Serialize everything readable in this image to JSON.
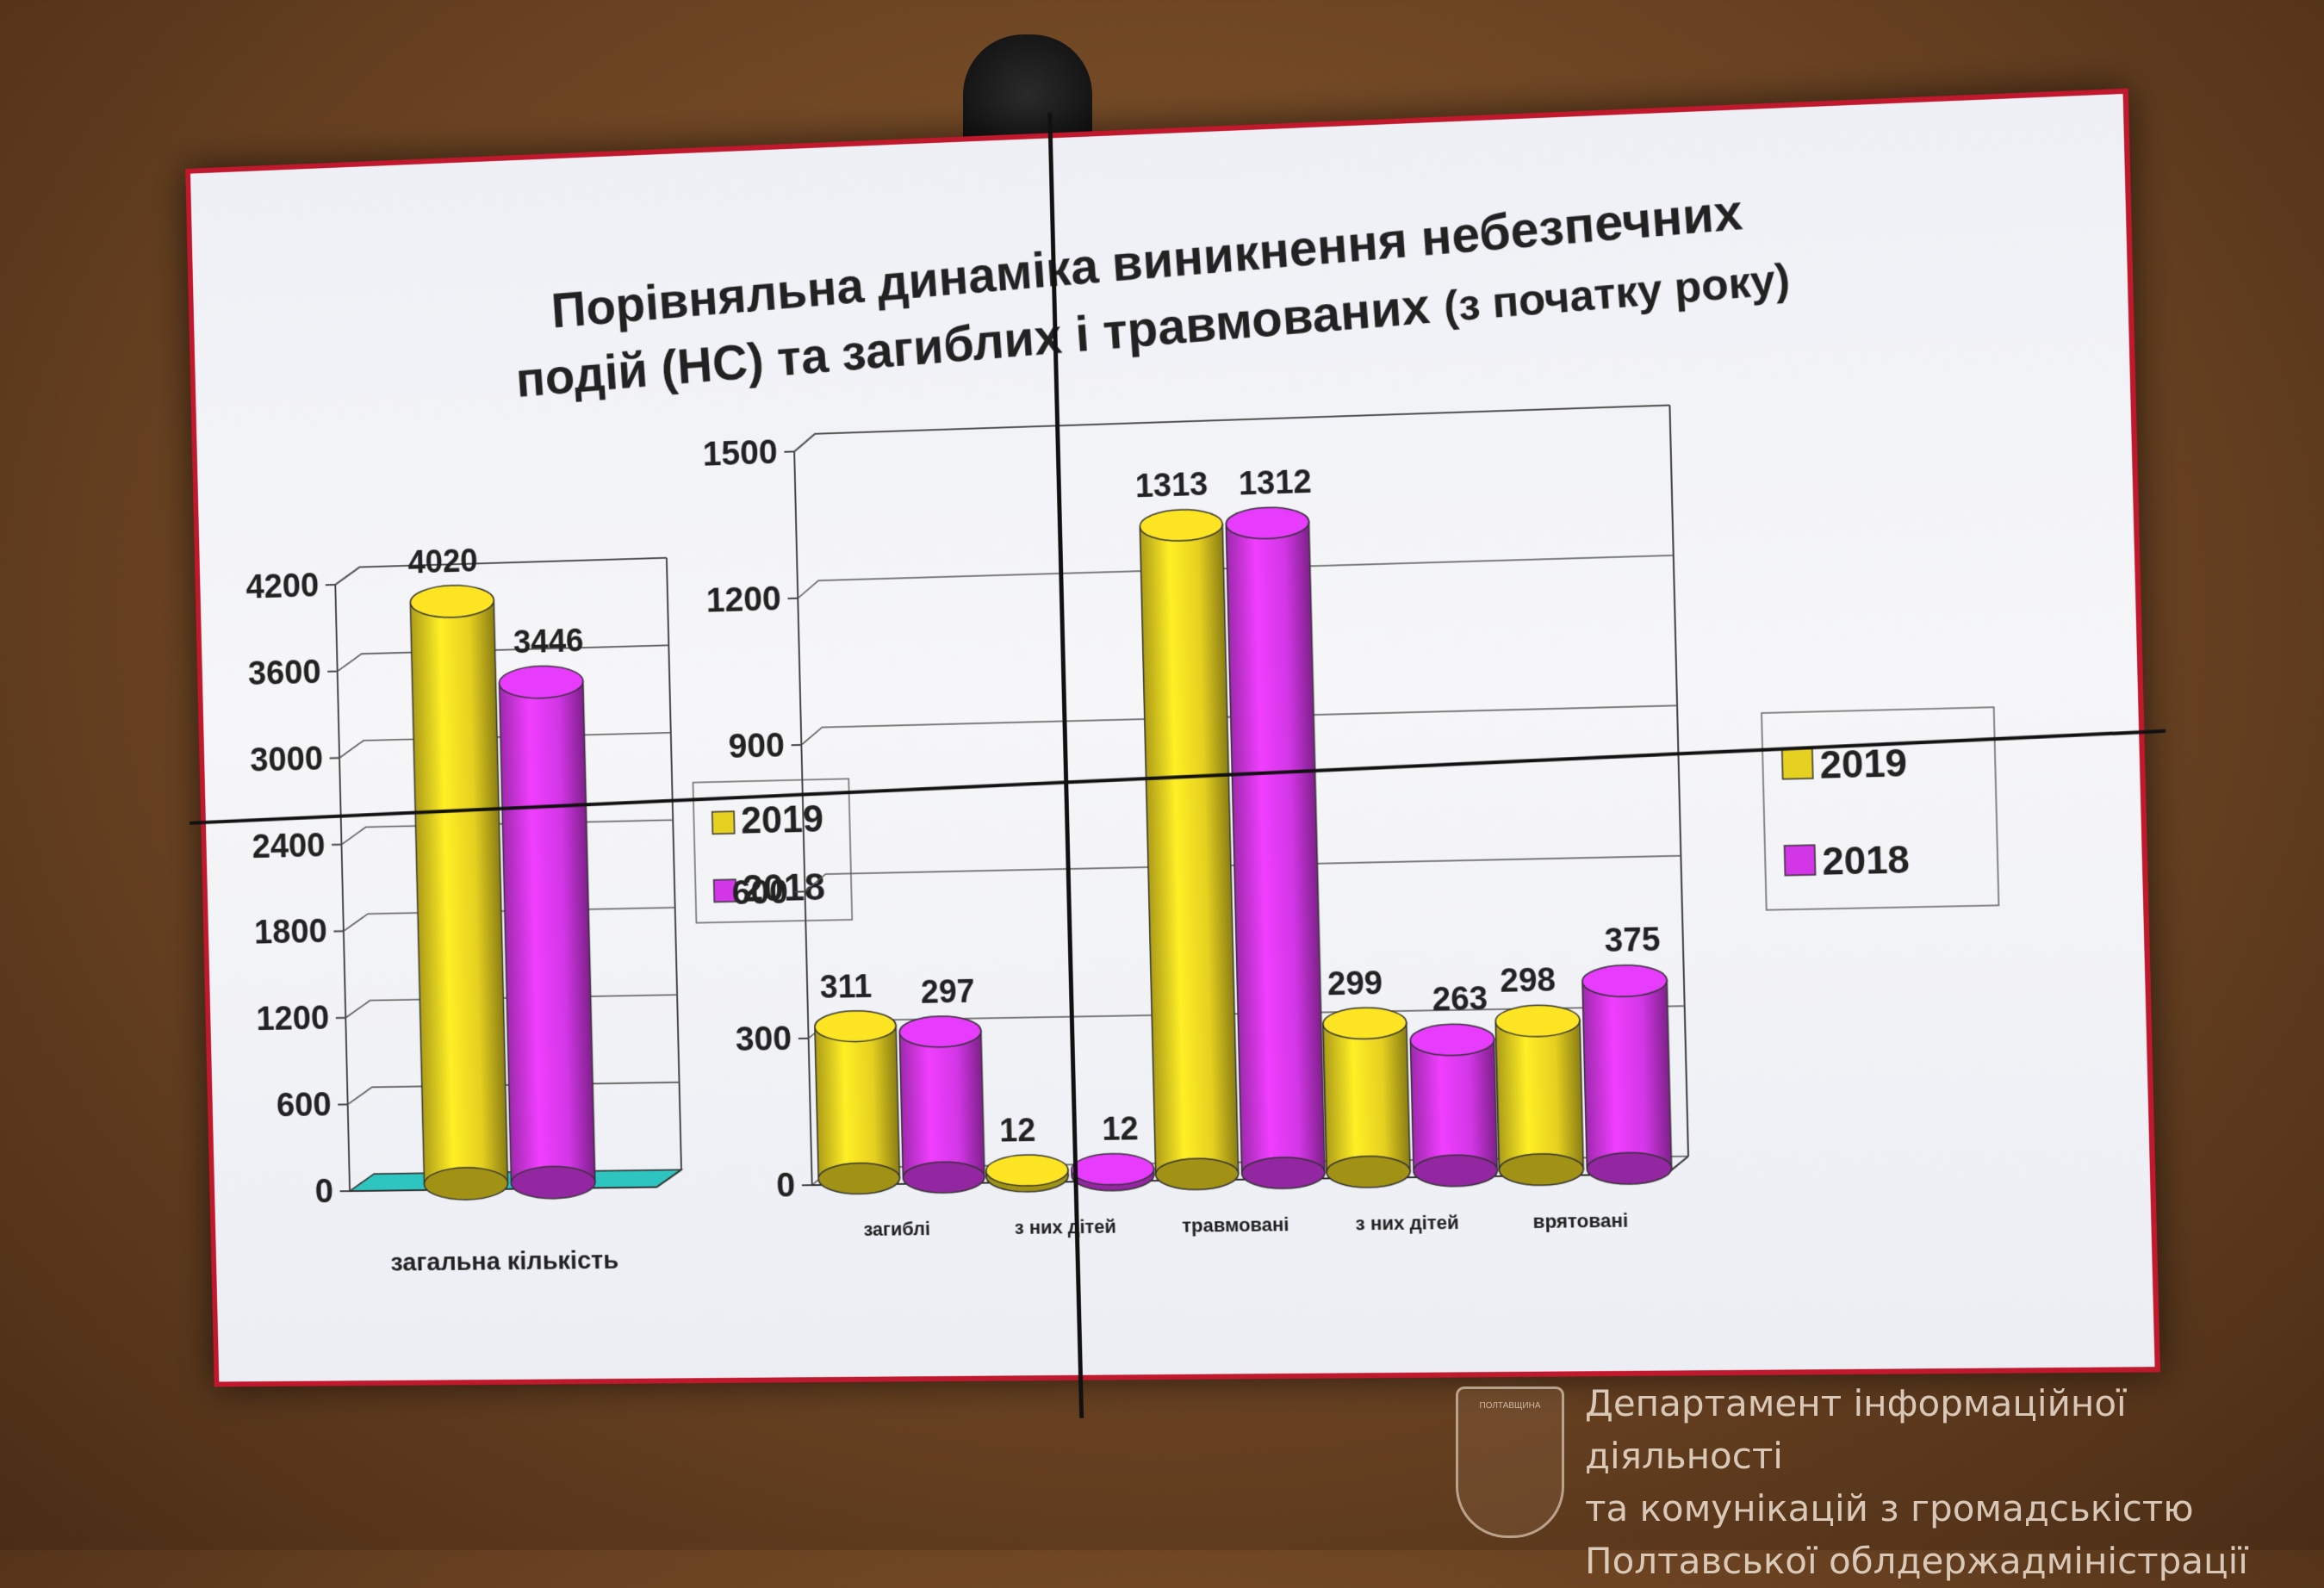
{
  "title": {
    "line1": "Порівняльна динаміка виникнення небезпечних",
    "line2": "подій (НС) та загиблих і травмованих",
    "suffix": "(з початку року)"
  },
  "watermark": {
    "line1": "Департамент інформаційної діяльності",
    "line2": "та комунікацій з громадськістю",
    "line3": "Полтавської облдержадміністрації"
  },
  "colors": {
    "y2019": "#e6d020",
    "y2018": "#d236e6",
    "floor": "#2ec4c0",
    "frame": "#c0182c"
  },
  "chart_data": [
    {
      "type": "bar",
      "categories": [
        "загальна кількість"
      ],
      "series": [
        {
          "name": "2019",
          "values": [
            4020
          ]
        },
        {
          "name": "2018",
          "values": [
            3446
          ]
        }
      ],
      "ylim": [
        0,
        4200
      ],
      "yticks": [
        "0",
        "600",
        "1200",
        "1800",
        "2400",
        "3000",
        "3600",
        "4200"
      ],
      "legend": "right",
      "grid": true
    },
    {
      "type": "bar",
      "categories": [
        "загиблі",
        "з них дітей",
        "травмовані",
        "з них дітей",
        "врятовані"
      ],
      "series": [
        {
          "name": "2019",
          "values": [
            311,
            12,
            1313,
            299,
            298
          ]
        },
        {
          "name": "2018",
          "values": [
            297,
            12,
            1312,
            263,
            375
          ]
        }
      ],
      "ylim": [
        0,
        1500
      ],
      "yticks": [
        "0",
        "300",
        "600",
        "900",
        "1200",
        "1500"
      ],
      "legend": "right",
      "grid": true
    }
  ]
}
